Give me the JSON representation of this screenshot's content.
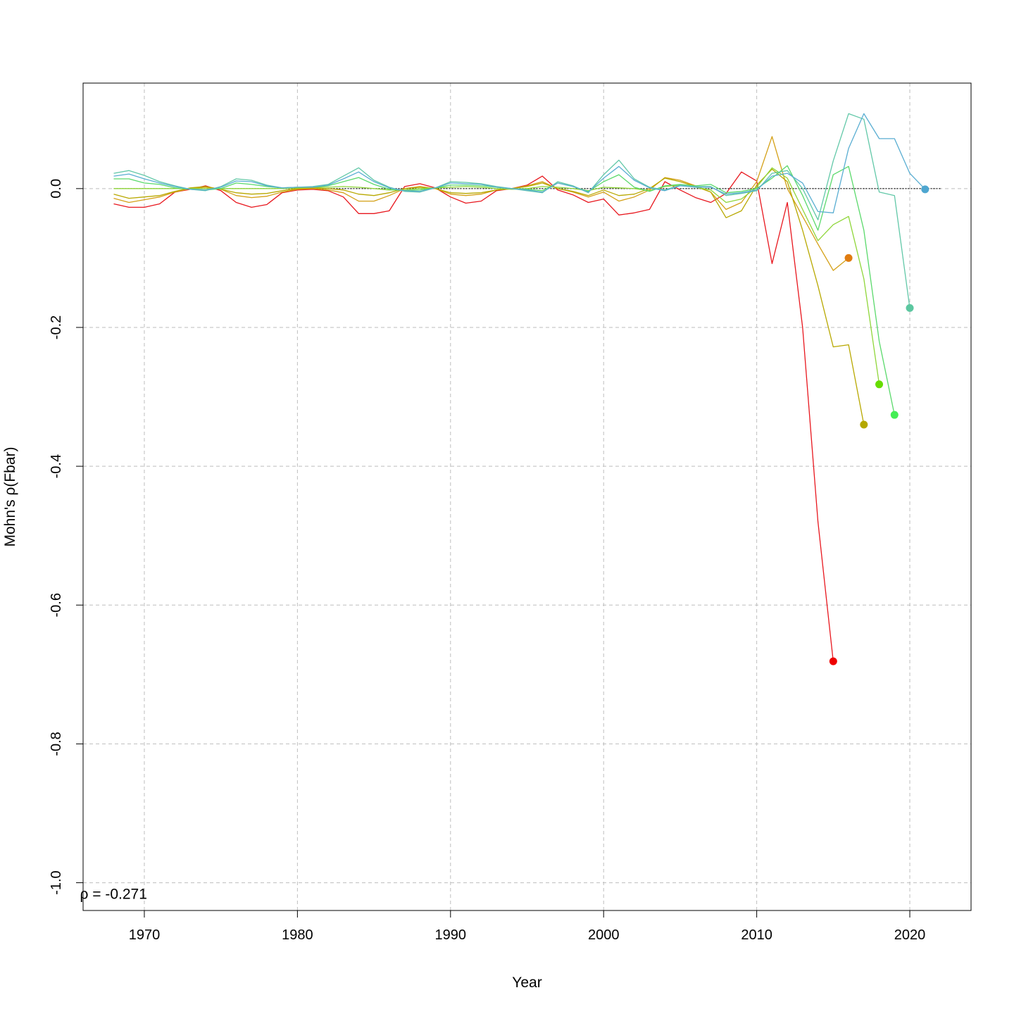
{
  "chart_data": {
    "type": "line",
    "title": "",
    "xlabel": "Year",
    "ylabel": "Mohn's ρ(Fbar)",
    "xlim": [
      1966,
      2024
    ],
    "ylim": [
      -1.04,
      0.152
    ],
    "x_ticks": [
      1970,
      1980,
      1990,
      2000,
      2010,
      2020
    ],
    "x_tick_labels": [
      "1970",
      "1980",
      "1990",
      "2000",
      "2010",
      "2020"
    ],
    "y_ticks": [
      0.0,
      -0.2,
      -0.4,
      -0.6,
      -0.8,
      -1.0
    ],
    "y_tick_labels": [
      "0.0",
      "-0.2",
      "-0.4",
      "-0.6",
      "-0.8",
      "-1.0"
    ],
    "grid": true,
    "legend": "none",
    "reference_line": {
      "y": 0,
      "x_start": 1968,
      "x_end": 2022,
      "style": "dotted",
      "color": "#000000"
    },
    "annotation": {
      "text": "ρ = -0.271",
      "x": 1968,
      "y": -1.015
    },
    "series": [
      {
        "color": "#e8171e",
        "x": [
          1968,
          1969,
          1970,
          1971,
          1972,
          1973,
          1974,
          1975,
          1976,
          1977,
          1978,
          1979,
          1980,
          1981,
          1982,
          1983,
          1984,
          1985,
          1986,
          1987,
          1988,
          1989,
          1990,
          1991,
          1992,
          1993,
          1994,
          1995,
          1996,
          1997,
          1998,
          1999,
          2000,
          2001,
          2002,
          2003,
          2004,
          2005,
          2006,
          2007,
          2008,
          2009,
          2010,
          2011,
          2012,
          2013,
          2014,
          2015
        ],
        "values": [
          -0.022,
          -0.027,
          -0.027,
          -0.022,
          -0.005,
          -0.001,
          0.004,
          -0.003,
          -0.02,
          -0.027,
          -0.023,
          -0.006,
          -0.002,
          -0.001,
          -0.003,
          -0.012,
          -0.036,
          -0.036,
          -0.032,
          0.003,
          0.007,
          0.001,
          -0.012,
          -0.021,
          -0.018,
          -0.003,
          0.0,
          0.005,
          0.018,
          -0.002,
          -0.009,
          -0.02,
          -0.015,
          -0.038,
          -0.035,
          -0.03,
          0.01,
          -0.002,
          -0.013,
          -0.02,
          -0.007,
          0.024,
          0.011,
          -0.108,
          -0.02,
          -0.2,
          -0.48,
          -0.681
        ],
        "end_point": {
          "x": 2015,
          "y": -0.681
        }
      },
      {
        "color": "#d4a017",
        "x": [
          1968,
          1969,
          1970,
          1971,
          1972,
          1973,
          1974,
          1975,
          1976,
          1977,
          1978,
          1979,
          1980,
          1981,
          1982,
          1983,
          1984,
          1985,
          1986,
          1987,
          1988,
          1989,
          1990,
          1991,
          1992,
          1993,
          1994,
          1995,
          1996,
          1997,
          1998,
          1999,
          2000,
          2001,
          2002,
          2003,
          2004,
          2005,
          2006,
          2007,
          2008,
          2009,
          2010,
          2011,
          2012,
          2013,
          2014,
          2015,
          2016
        ],
        "values": [
          -0.014,
          -0.02,
          -0.016,
          -0.012,
          -0.005,
          0.0,
          0.002,
          -0.001,
          -0.01,
          -0.013,
          -0.011,
          -0.005,
          -0.001,
          0.0,
          -0.002,
          -0.006,
          -0.018,
          -0.018,
          -0.01,
          0.0,
          0.003,
          0.0,
          -0.008,
          -0.01,
          -0.008,
          -0.002,
          0.0,
          0.004,
          0.01,
          0.0,
          -0.005,
          -0.012,
          -0.005,
          -0.018,
          -0.012,
          -0.002,
          0.016,
          0.012,
          0.004,
          -0.005,
          -0.03,
          -0.02,
          0.01,
          0.075,
          0.0,
          -0.04,
          -0.08,
          -0.118,
          -0.1
        ],
        "end_point": {
          "x": 2016,
          "y": -0.1
        }
      },
      {
        "color": "#b8a800",
        "x": [
          1968,
          1969,
          1970,
          1971,
          1972,
          1973,
          1974,
          1975,
          1976,
          1977,
          1978,
          1979,
          1980,
          1981,
          1982,
          1983,
          1984,
          1985,
          1986,
          1987,
          1988,
          1989,
          1990,
          1991,
          1992,
          1993,
          1994,
          1995,
          1996,
          1997,
          1998,
          1999,
          2000,
          2001,
          2002,
          2003,
          2004,
          2005,
          2006,
          2007,
          2008,
          2009,
          2010,
          2011,
          2012,
          2013,
          2014,
          2015,
          2016,
          2017
        ],
        "values": [
          -0.008,
          -0.014,
          -0.012,
          -0.01,
          -0.004,
          0.001,
          0.003,
          -0.001,
          -0.006,
          -0.008,
          -0.007,
          -0.003,
          0.0,
          0.001,
          0.0,
          -0.002,
          -0.008,
          -0.01,
          -0.006,
          0.0,
          0.002,
          0.0,
          -0.006,
          -0.007,
          -0.006,
          -0.002,
          0.0,
          0.003,
          0.008,
          0.0,
          -0.004,
          -0.01,
          -0.002,
          -0.01,
          -0.008,
          0.0,
          0.015,
          0.01,
          0.003,
          -0.005,
          -0.042,
          -0.032,
          0.005,
          0.028,
          0.01,
          -0.06,
          -0.14,
          -0.228,
          -0.225,
          -0.34
        ],
        "end_point": {
          "x": 2017,
          "y": -0.34
        }
      },
      {
        "color": "#8fd63a",
        "x": [
          1968,
          1969,
          1970,
          1971,
          1972,
          1973,
          1974,
          1975,
          1976,
          1977,
          1978,
          1979,
          1980,
          1981,
          1982,
          1983,
          1984,
          1985,
          1986,
          1987,
          1988,
          1989,
          1990,
          1991,
          1992,
          1993,
          1994,
          1995,
          1996,
          1997,
          1998,
          1999,
          2000,
          2001,
          2002,
          2003,
          2004,
          2005,
          2006,
          2007,
          2008,
          2009,
          2010,
          2011,
          2012,
          2013,
          2014,
          2015,
          2016,
          2017,
          2018
        ],
        "values": [
          0.0,
          0.0,
          0.0,
          0.0,
          0.0,
          0.0,
          0.0,
          0.0,
          0.0,
          0.0,
          0.0,
          0.0,
          0.001,
          0.002,
          0.002,
          0.003,
          0.002,
          0.0,
          -0.002,
          -0.002,
          0.0,
          0.001,
          0.002,
          0.003,
          0.002,
          0.0,
          -0.001,
          0.0,
          0.003,
          0.002,
          0.0,
          -0.003,
          0.002,
          0.001,
          0.0,
          -0.003,
          0.003,
          0.005,
          0.002,
          -0.002,
          -0.02,
          -0.015,
          0.002,
          0.03,
          0.015,
          -0.03,
          -0.075,
          -0.052,
          -0.04,
          -0.13,
          -0.282
        ],
        "end_point": {
          "x": 2018,
          "y": -0.282
        }
      },
      {
        "color": "#5ad96b",
        "x": [
          1968,
          1969,
          1970,
          1971,
          1972,
          1973,
          1974,
          1975,
          1976,
          1977,
          1978,
          1979,
          1980,
          1981,
          1982,
          1983,
          1984,
          1985,
          1986,
          1987,
          1988,
          1989,
          1990,
          1991,
          1992,
          1993,
          1994,
          1995,
          1996,
          1997,
          1998,
          1999,
          2000,
          2001,
          2002,
          2003,
          2004,
          2005,
          2006,
          2007,
          2008,
          2009,
          2010,
          2011,
          2012,
          2013,
          2014,
          2015,
          2016,
          2017,
          2018,
          2019
        ],
        "values": [
          0.014,
          0.014,
          0.008,
          0.006,
          0.001,
          -0.001,
          -0.002,
          0.0,
          0.008,
          0.006,
          0.003,
          0.001,
          0.002,
          0.002,
          0.004,
          0.01,
          0.016,
          0.006,
          -0.001,
          -0.003,
          -0.002,
          0.001,
          0.005,
          0.005,
          0.004,
          0.002,
          0.0,
          -0.001,
          -0.003,
          0.008,
          0.003,
          -0.004,
          0.01,
          0.02,
          0.002,
          -0.004,
          0.004,
          0.006,
          0.004,
          0.006,
          -0.006,
          -0.004,
          0.0,
          0.015,
          0.033,
          -0.01,
          -0.06,
          0.02,
          0.032,
          -0.06,
          -0.22,
          -0.326
        ],
        "end_point": {
          "x": 2019,
          "y": -0.326
        }
      },
      {
        "color": "#62c8a8",
        "x": [
          1968,
          1969,
          1970,
          1971,
          1972,
          1973,
          1974,
          1975,
          1976,
          1977,
          1978,
          1979,
          1980,
          1981,
          1982,
          1983,
          1984,
          1985,
          1986,
          1987,
          1988,
          1989,
          1990,
          1991,
          1992,
          1993,
          1994,
          1995,
          1996,
          1997,
          1998,
          1999,
          2000,
          2001,
          2002,
          2003,
          2004,
          2005,
          2006,
          2007,
          2008,
          2009,
          2010,
          2011,
          2012,
          2013,
          2014,
          2015,
          2016,
          2017,
          2018,
          2019,
          2020
        ],
        "values": [
          0.022,
          0.026,
          0.019,
          0.01,
          0.004,
          -0.001,
          -0.003,
          0.003,
          0.014,
          0.012,
          0.005,
          0.001,
          0.002,
          0.003,
          0.006,
          0.018,
          0.03,
          0.012,
          0.002,
          -0.004,
          -0.005,
          0.001,
          0.01,
          0.009,
          0.007,
          0.003,
          0.0,
          -0.003,
          -0.006,
          0.01,
          0.004,
          -0.006,
          0.02,
          0.041,
          0.014,
          0.002,
          -0.002,
          0.005,
          0.003,
          0.003,
          -0.01,
          -0.007,
          -0.003,
          0.022,
          0.026,
          0.0,
          -0.045,
          0.04,
          0.108,
          0.1,
          -0.005,
          -0.01,
          -0.172
        ],
        "end_point": {
          "x": 2020,
          "y": -0.172
        }
      },
      {
        "color": "#5aaed2",
        "x": [
          1968,
          1969,
          1970,
          1971,
          1972,
          1973,
          1974,
          1975,
          1976,
          1977,
          1978,
          1979,
          1980,
          1981,
          1982,
          1983,
          1984,
          1985,
          1986,
          1987,
          1988,
          1989,
          1990,
          1991,
          1992,
          1993,
          1994,
          1995,
          1996,
          1997,
          1998,
          1999,
          2000,
          2001,
          2002,
          2003,
          2004,
          2005,
          2006,
          2007,
          2008,
          2009,
          2010,
          2011,
          2012,
          2013,
          2014,
          2015,
          2016,
          2017,
          2018,
          2019,
          2020,
          2021
        ],
        "values": [
          0.018,
          0.021,
          0.014,
          0.008,
          0.003,
          -0.001,
          -0.002,
          0.002,
          0.011,
          0.01,
          0.004,
          0.001,
          0.002,
          0.002,
          0.005,
          0.014,
          0.024,
          0.01,
          0.001,
          -0.003,
          -0.004,
          0.001,
          0.008,
          0.007,
          0.006,
          0.002,
          0.0,
          -0.002,
          -0.005,
          0.008,
          0.003,
          -0.005,
          0.015,
          0.032,
          0.012,
          0.001,
          -0.003,
          0.004,
          0.002,
          0.002,
          -0.008,
          -0.006,
          -0.002,
          0.018,
          0.022,
          0.008,
          -0.033,
          -0.035,
          0.058,
          0.108,
          0.072,
          0.072,
          0.022,
          -0.001
        ],
        "end_point": {
          "x": 2021,
          "y": -0.001
        }
      }
    ],
    "end_point_colors": [
      "#ee0000",
      "#e07c10",
      "#b4a800",
      "#66dd00",
      "#44ee55",
      "#5cc7a0",
      "#4ea6d0"
    ]
  }
}
